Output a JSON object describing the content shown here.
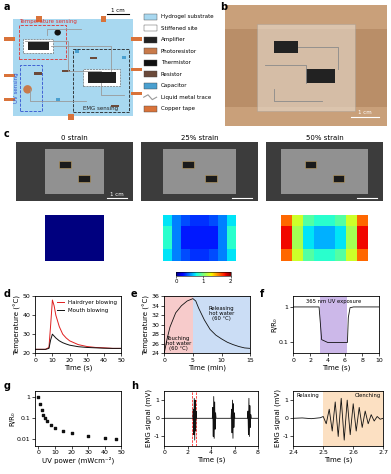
{
  "panel_a": {
    "panel": "a",
    "scale_bar": "1 cm",
    "sensing_regions": [
      {
        "label": "Temperature sensing",
        "color": "#e03030"
      },
      {
        "label": "UV sensing",
        "color": "#3050d0"
      },
      {
        "label": "EMG sensing",
        "color": "#222222"
      }
    ],
    "key": [
      {
        "label": "Hydrogel substrate",
        "color": "#a8d8f0"
      },
      {
        "label": "Stiffened site",
        "color": "#ffffff"
      },
      {
        "label": "Amplifier",
        "color": "#222222"
      },
      {
        "label": "Photoresistor",
        "color": "#c87a4a"
      },
      {
        "label": "Thermistor",
        "color": "#111111"
      },
      {
        "label": "Resistor",
        "color": "#6b4a3a"
      },
      {
        "label": "Capacitor",
        "color": "#4aa0d0"
      },
      {
        "label": "Liquid metal trace",
        "color": "#999999"
      },
      {
        "label": "Copper tape",
        "color": "#d9733a"
      }
    ]
  },
  "panel_b": {
    "panel": "b",
    "scale_bar": "1 cm"
  },
  "panel_c": {
    "panel": "c",
    "strain_labels": [
      "0 strain",
      "25% strain",
      "50% strain"
    ],
    "scale_bar": "1 cm",
    "strain_maps": [
      [
        [
          0,
          0,
          0,
          0,
          0,
          0,
          0,
          0
        ],
        [
          0,
          0,
          0,
          0,
          0,
          0,
          0,
          0
        ],
        [
          0,
          0,
          0,
          0,
          0,
          0,
          0,
          0
        ],
        [
          0,
          0,
          0,
          0,
          0,
          0,
          0,
          0
        ]
      ],
      [
        [
          0.7,
          0.5,
          0.4,
          0.35,
          0.35,
          0.4,
          0.5,
          0.7
        ],
        [
          0.8,
          0.5,
          0.3,
          0.3,
          0.3,
          0.3,
          0.5,
          0.8
        ],
        [
          0.8,
          0.5,
          0.3,
          0.3,
          0.3,
          0.3,
          0.5,
          0.8
        ],
        [
          0.7,
          0.5,
          0.4,
          0.35,
          0.35,
          0.4,
          0.5,
          0.7
        ]
      ],
      [
        [
          1.6,
          1.2,
          0.9,
          0.8,
          0.8,
          0.9,
          1.2,
          1.6
        ],
        [
          1.8,
          1.1,
          0.7,
          0.6,
          0.6,
          0.7,
          1.1,
          1.8
        ],
        [
          1.8,
          1.1,
          0.7,
          0.6,
          0.6,
          0.7,
          1.1,
          1.8
        ],
        [
          1.6,
          1.2,
          0.9,
          0.8,
          0.8,
          0.9,
          1.2,
          1.6
        ]
      ]
    ],
    "colorbar": {
      "range": [
        0,
        2
      ],
      "ticks": [
        0,
        1,
        2
      ]
    }
  },
  "chart_data": [
    {
      "panel": "d",
      "type": "line",
      "x_label": "Time (s)",
      "y_label": "Temperature (°C)",
      "xlim": [
        0,
        50
      ],
      "xticks": [
        0,
        10,
        20,
        30,
        40,
        50
      ],
      "ylim": [
        20,
        50
      ],
      "yticks": [
        20,
        30,
        40,
        50
      ],
      "legend": "upper right",
      "x": [
        0,
        2,
        4,
        6,
        8,
        9,
        10,
        11,
        12,
        14,
        16,
        18,
        20,
        25,
        30,
        35,
        40,
        45,
        50
      ],
      "series": [
        {
          "name": "Hairdryer blowing",
          "color": "#e02020",
          "values": [
            22,
            22,
            22,
            22,
            23,
            35,
            48,
            45,
            40,
            34,
            30,
            28,
            26.5,
            24.5,
            23.5,
            23,
            22.8,
            22.5,
            22.5
          ]
        },
        {
          "name": "Mouth blowing",
          "color": "#111111",
          "values": [
            22,
            22,
            22,
            22,
            22.5,
            27,
            30,
            29,
            28,
            26.5,
            25.5,
            24.8,
            24.2,
            23.4,
            23,
            22.8,
            22.6,
            22.5,
            22.5
          ]
        }
      ]
    },
    {
      "panel": "e",
      "type": "line",
      "x_label": "Time (min)",
      "y_label": "Temperature (°C)",
      "xlim": [
        0,
        15
      ],
      "xticks": [
        0,
        5,
        10,
        15
      ],
      "ylim": [
        24,
        36
      ],
      "yticks": [
        24,
        26,
        28,
        30,
        32,
        34,
        36
      ],
      "x": [
        0,
        0.5,
        1,
        1.5,
        2,
        3,
        4,
        5,
        5.5,
        6,
        7,
        8,
        9,
        10,
        11,
        12,
        13,
        14,
        15
      ],
      "values": [
        24,
        27,
        29.5,
        31,
        32.5,
        34,
        35,
        35.5,
        35,
        33.5,
        31,
        29,
        27.8,
        27,
        26.3,
        25.8,
        25.4,
        25.1,
        25
      ],
      "color": "#111111",
      "regions": [
        {
          "label": "Touching\nhot water\n(60 °C)",
          "start": 0,
          "end": 5,
          "color": "#f5b5b5"
        },
        {
          "label": "Releasing\nhot water\n(60 °C)",
          "start": 5,
          "end": 15,
          "color": "#b5cff2"
        }
      ]
    },
    {
      "panel": "f",
      "type": "line",
      "log": "y",
      "x_label": "Time (s)",
      "y_label": "R/R₀",
      "xlim": [
        0,
        10
      ],
      "xticks": [
        0,
        2,
        4,
        6,
        8,
        10
      ],
      "ylim": [
        0.05,
        2
      ],
      "yticks": [
        0.1,
        1
      ],
      "x": [
        0,
        1,
        2,
        3,
        3.1,
        3.3,
        4,
        5,
        6,
        6.3,
        6.4,
        6.6,
        7,
        8,
        9,
        10
      ],
      "values": [
        1,
        1,
        1,
        1,
        0.5,
        0.12,
        0.1,
        0.1,
        0.1,
        0.1,
        0.5,
        0.95,
        1,
        1,
        1,
        1
      ],
      "color": "#111111",
      "regions": [
        {
          "label": "365 nm UV exposure",
          "start": 3.1,
          "end": 6.3,
          "color": "#b79be0"
        }
      ]
    },
    {
      "panel": "g",
      "type": "scatter",
      "log": "y",
      "x_label": "UV power (mWcm⁻²)",
      "y_label": "R/R₀",
      "xlim": [
        -2,
        50
      ],
      "xticks": [
        0,
        10,
        20,
        30,
        40,
        50
      ],
      "ylim": [
        0.005,
        2
      ],
      "yticks": [
        0.01,
        0.1,
        1
      ],
      "x": [
        0,
        1,
        2,
        3,
        4,
        5,
        7.5,
        10,
        15,
        20,
        30,
        40,
        47
      ],
      "values": [
        1,
        0.5,
        0.25,
        0.15,
        0.1,
        0.075,
        0.05,
        0.035,
        0.025,
        0.02,
        0.015,
        0.012,
        0.01
      ],
      "color": "#111111",
      "marker": "square"
    },
    {
      "panel": "h",
      "type": "line",
      "x_label": "Time (s)",
      "y_label": "EMG signal (mV)",
      "xlim": [
        0,
        8
      ],
      "xticks": [
        0,
        2,
        4,
        6,
        8
      ],
      "ylim": [
        -1.5,
        1.5
      ],
      "yticks": [
        -1,
        0,
        1
      ],
      "x": [
        0,
        1,
        2,
        2.44,
        2.48,
        2.52,
        2.56,
        2.6,
        2.64,
        2.68,
        2.72,
        2.76,
        3.5,
        4.1,
        4.14,
        4.18,
        4.22,
        4.26,
        4.3,
        4.34,
        4.38,
        4.42,
        5.2,
        5.7,
        5.74,
        5.78,
        5.82,
        5.86,
        5.9,
        5.94,
        5.98,
        6.02,
        6.6,
        7.1,
        7.14,
        7.18,
        7.22,
        7.26,
        7.3,
        7.34,
        7.38,
        7.42,
        8
      ],
      "values": [
        0,
        0,
        0,
        0,
        0.5,
        -0.9,
        1.1,
        -1.2,
        1.0,
        -0.7,
        0.4,
        0,
        0,
        0,
        0.6,
        -1.0,
        1.2,
        -1.1,
        0.9,
        -0.6,
        0.3,
        0,
        0,
        0,
        0.5,
        -0.8,
        1.0,
        -1.1,
        0.8,
        -0.5,
        0.3,
        0,
        0,
        0,
        0.4,
        -0.9,
        1.1,
        -1.0,
        0.7,
        -0.5,
        0.2,
        0,
        0
      ],
      "color": "#111111",
      "zoom_range": [
        2.4,
        2.7
      ]
    },
    {
      "type": "line",
      "x_label": "Time (s)",
      "y_label": "EMG signal (mV)",
      "xlim": [
        2.4,
        2.7
      ],
      "xticks": [
        2.4,
        2.5,
        2.6,
        2.7
      ],
      "ylim": [
        -1.5,
        1.5
      ],
      "yticks": [
        -1,
        0,
        1
      ],
      "x": [
        2.4,
        2.43,
        2.46,
        2.49,
        2.5,
        2.51,
        2.52,
        2.53,
        2.54,
        2.55,
        2.56,
        2.57,
        2.58,
        2.59,
        2.6,
        2.61,
        2.62,
        2.63,
        2.64,
        2.65,
        2.66,
        2.67,
        2.68,
        2.69,
        2.7
      ],
      "values": [
        0,
        0.02,
        -0.02,
        0.03,
        0.1,
        -0.3,
        0.5,
        -0.7,
        0.9,
        -1.0,
        1.1,
        -1.2,
        1.0,
        -0.9,
        0.8,
        -0.7,
        0.6,
        -0.5,
        0.4,
        -0.3,
        0.2,
        -0.15,
        0.1,
        -0.05,
        0
      ],
      "color": "#111111",
      "regions": [
        {
          "label": "Relaxing",
          "start": 2.4,
          "end": 2.5,
          "color": "#ffffff"
        },
        {
          "label": "Clenching",
          "start": 2.5,
          "end": 2.7,
          "color": "#fbd3a8"
        }
      ]
    }
  ]
}
